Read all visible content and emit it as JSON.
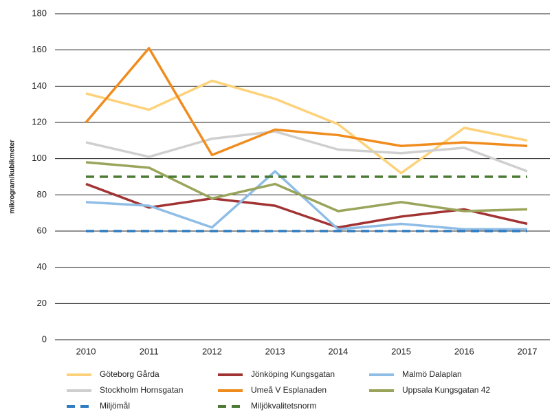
{
  "chart_data": {
    "type": "line",
    "y_label": "mikrogram/kubikmeter",
    "categories": [
      "2010",
      "2011",
      "2012",
      "2013",
      "2014",
      "2015",
      "2016",
      "2017"
    ],
    "ylim": [
      0,
      180
    ],
    "yticks": [
      0,
      20,
      40,
      60,
      80,
      100,
      120,
      140,
      160,
      180
    ],
    "grid": true,
    "legend": "bottom",
    "series": [
      {
        "name": "Göteborg Gårda",
        "color": "#fdd27a",
        "dashed": false,
        "values": [
          136,
          127,
          143,
          133,
          119,
          92,
          117,
          110
        ]
      },
      {
        "name": "Jönköping Kungsgatan",
        "color": "#a23333",
        "dashed": false,
        "values": [
          86,
          73,
          78,
          74,
          62,
          68,
          72,
          64
        ]
      },
      {
        "name": "Malmö Dalaplan",
        "color": "#8fbde6",
        "dashed": false,
        "values": [
          76,
          74,
          62,
          93,
          61,
          64,
          61,
          61
        ]
      },
      {
        "name": "Stockholm Hornsgatan",
        "color": "#cfcfcf",
        "dashed": false,
        "values": [
          109,
          101,
          111,
          115,
          105,
          103,
          106,
          93
        ]
      },
      {
        "name": "Umeå V Esplanaden",
        "color": "#f08c1e",
        "dashed": false,
        "values": [
          120,
          161,
          102,
          116,
          113,
          107,
          109,
          107
        ]
      },
      {
        "name": "Uppsala Kungsgatan 42",
        "color": "#9aa45a",
        "dashed": false,
        "values": [
          98,
          95,
          78,
          86,
          71,
          76,
          71,
          72
        ]
      },
      {
        "name": "Miljömål",
        "color": "#2f7cc1",
        "dashed": true,
        "values": [
          60,
          60,
          60,
          60,
          60,
          60,
          60,
          60
        ]
      },
      {
        "name": "Miljökvalitetsnorm",
        "color": "#4b7a33",
        "dashed": true,
        "values": [
          90,
          90,
          90,
          90,
          90,
          90,
          90,
          90
        ]
      }
    ]
  }
}
